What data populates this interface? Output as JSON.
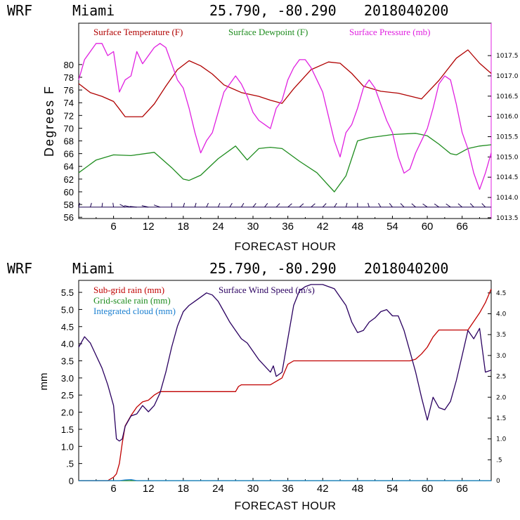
{
  "colors": {
    "temperature": "#b00000",
    "dewpoint": "#1e8c1e",
    "pressure": "#e020e0",
    "wind_barb": "#1a0050",
    "subgrid_rain": "#c00000",
    "gridscale_rain": "#1e8c1e",
    "integrated_cloud": "#1a7fd0",
    "wind_speed": "#2a0060"
  },
  "chart_data": [
    {
      "type": "line",
      "header": {
        "model": "WRF",
        "station": "Miami",
        "coords": "25.790, -80.290",
        "init": "2018040200"
      },
      "title": "WRF Miami 25.790, -80.290 2018040200",
      "xlabel": "FORECAST HOUR",
      "ylabel": "Degrees F",
      "y2label": "",
      "xlim": [
        0,
        71
      ],
      "ylim": [
        55.8,
        86.5
      ],
      "y2lim": [
        1013.48,
        1018.3
      ],
      "xticks": [
        "6",
        "12",
        "18",
        "24",
        "30",
        "36",
        "42",
        "48",
        "54",
        "60",
        "66"
      ],
      "xtick_values": [
        6,
        12,
        18,
        24,
        30,
        36,
        42,
        48,
        54,
        60,
        66
      ],
      "yticks": [
        "56",
        "58",
        "60",
        "62",
        "64",
        "66",
        "68",
        "70",
        "72",
        "74",
        "76",
        "78",
        "80"
      ],
      "ytick_values": [
        56,
        58,
        60,
        62,
        64,
        66,
        68,
        70,
        72,
        74,
        76,
        78,
        80
      ],
      "y2ticks": [
        "1013.5",
        "1014.0",
        "1014.5",
        "1015.0",
        "1015.5",
        "1016.0",
        "1016.5",
        "1017.0",
        "1017.5"
      ],
      "y2tick_values": [
        1013.5,
        1014.0,
        1014.5,
        1015.0,
        1015.5,
        1016.0,
        1016.5,
        1017.0,
        1017.5
      ],
      "legend": [
        "Surface Temperature (F)",
        "Surface Dewpoint (F)",
        "Surface Pressure (mb)"
      ],
      "series": [
        {
          "name": "Surface Temperature (F)",
          "axis": "left",
          "x": [
            0,
            2,
            4,
            6,
            7,
            8,
            11,
            13,
            15,
            17,
            19,
            21,
            23,
            25,
            28,
            31,
            33,
            35,
            37,
            40,
            43,
            45,
            47,
            49,
            52,
            55,
            59,
            62,
            65,
            67,
            69,
            71
          ],
          "values": [
            77.0,
            75.6,
            75.0,
            74.2,
            73.0,
            71.8,
            71.8,
            73.8,
            76.6,
            79.2,
            80.6,
            79.8,
            78.5,
            76.8,
            75.6,
            75.0,
            74.4,
            73.9,
            76.2,
            79.2,
            80.4,
            80.2,
            78.6,
            76.6,
            75.8,
            75.5,
            74.6,
            77.5,
            81.0,
            82.3,
            80.2,
            78.6
          ]
        },
        {
          "name": "Surface Dewpoint (F)",
          "axis": "left",
          "x": [
            0,
            3,
            6,
            9,
            13,
            16,
            18,
            19,
            21,
            24,
            27,
            29,
            31,
            33,
            35,
            38,
            41,
            44,
            46,
            48,
            50,
            54,
            58,
            60,
            62,
            64,
            65,
            67,
            69,
            71
          ],
          "values": [
            63.0,
            65.0,
            65.8,
            65.7,
            66.2,
            63.8,
            62.0,
            61.8,
            62.6,
            65.2,
            67.2,
            65.0,
            66.8,
            67.0,
            66.8,
            64.8,
            63.0,
            60.0,
            62.5,
            68.0,
            68.5,
            69.0,
            69.2,
            68.8,
            67.5,
            66.0,
            65.8,
            66.8,
            67.2,
            67.4
          ]
        },
        {
          "name": "Surface Pressure (mb)",
          "axis": "right",
          "x": [
            0,
            1,
            2,
            3,
            4,
            5,
            6,
            7,
            8,
            9,
            10,
            11,
            12,
            13,
            14,
            15,
            16,
            17,
            18,
            19,
            20,
            21,
            22,
            23,
            24,
            25,
            26,
            27,
            28,
            29,
            30,
            31,
            32,
            33,
            34,
            35,
            36,
            37,
            38,
            39,
            40,
            41,
            42,
            43,
            44,
            45,
            46,
            47,
            48,
            49,
            50,
            51,
            52,
            53,
            54,
            55,
            56,
            57,
            58,
            59,
            60,
            61,
            62,
            63,
            64,
            65,
            66,
            67,
            68,
            69,
            70,
            71
          ],
          "values": [
            1016.9,
            1017.4,
            1017.6,
            1017.8,
            1017.8,
            1017.5,
            1017.6,
            1016.6,
            1016.9,
            1017.0,
            1017.6,
            1017.3,
            1017.5,
            1017.7,
            1017.8,
            1017.7,
            1017.3,
            1016.9,
            1016.7,
            1016.2,
            1015.6,
            1015.1,
            1015.4,
            1015.6,
            1016.1,
            1016.6,
            1016.8,
            1017.0,
            1016.8,
            1016.5,
            1016.1,
            1015.9,
            1015.8,
            1015.7,
            1016.2,
            1016.4,
            1016.9,
            1017.2,
            1017.4,
            1017.4,
            1017.2,
            1016.9,
            1016.6,
            1016.0,
            1015.4,
            1015.0,
            1015.6,
            1015.8,
            1016.2,
            1016.7,
            1016.9,
            1016.7,
            1016.3,
            1015.9,
            1015.6,
            1015.0,
            1014.6,
            1014.7,
            1015.1,
            1015.4,
            1015.7,
            1016.2,
            1016.8,
            1017.0,
            1016.9,
            1016.3,
            1015.6,
            1015.2,
            1014.6,
            1014.2,
            1014.6,
            1015.1
          ]
        }
      ],
      "wind_barbs": {
        "name": "Surface wind barbs",
        "y_level": 57.6,
        "x": [
          0,
          2,
          4,
          6,
          8,
          9,
          10,
          12,
          14,
          16,
          18,
          20,
          22,
          24,
          26,
          28,
          30,
          32,
          34,
          36,
          38,
          40,
          42,
          44,
          46,
          48,
          50,
          52,
          54,
          56,
          58,
          60,
          62,
          64,
          66,
          68,
          70
        ],
        "direction_deg": [
          80,
          80,
          85,
          95,
          140,
          160,
          170,
          160,
          150,
          90,
          80,
          80,
          75,
          75,
          70,
          70,
          65,
          65,
          60,
          55,
          55,
          55,
          60,
          70,
          80,
          90,
          100,
          110,
          115,
          120,
          125,
          130,
          130,
          130,
          125,
          120,
          120
        ]
      }
    },
    {
      "type": "line",
      "header": {
        "model": "WRF",
        "station": "Miami",
        "coords": "25.790, -80.290",
        "init": "2018040200"
      },
      "title": "WRF Miami 25.790, -80.290 2018040200",
      "xlabel": "FORECAST HOUR",
      "ylabel": "mm",
      "xlim": [
        0,
        71
      ],
      "ylim": [
        0,
        5.85
      ],
      "y2lim": [
        0,
        4.8
      ],
      "xticks": [
        "6",
        "12",
        "18",
        "24",
        "30",
        "36",
        "42",
        "48",
        "54",
        "60",
        "66"
      ],
      "xtick_values": [
        6,
        12,
        18,
        24,
        30,
        36,
        42,
        48,
        54,
        60,
        66
      ],
      "yticks": [
        "0",
        ".5",
        "1.0",
        "1.5",
        "2.0",
        "2.5",
        "3.0",
        "3.5",
        "4.0",
        "4.5",
        "5.0",
        "5.5"
      ],
      "ytick_values": [
        0,
        0.5,
        1.0,
        1.5,
        2.0,
        2.5,
        3.0,
        3.5,
        4.0,
        4.5,
        5.0,
        5.5
      ],
      "y2ticks": [
        "0",
        ".5",
        "1.0",
        "1.5",
        "2.0",
        "2.5",
        "3.0",
        "3.5",
        "4.0",
        "4.5"
      ],
      "y2tick_values": [
        0,
        0.5,
        1.0,
        1.5,
        2.0,
        2.5,
        3.0,
        3.5,
        4.0,
        4.5
      ],
      "legend": [
        "Sub-grid rain (mm)",
        "Surface Wind Speed (m/s)",
        "Grid-scale rain (mm)",
        "Integrated cloud (mm)"
      ],
      "series": [
        {
          "name": "Sub-grid rain (mm)",
          "axis": "left",
          "x": [
            0,
            5,
            6,
            6.5,
            7,
            7.5,
            8,
            9,
            10,
            11,
            12,
            13,
            14,
            27,
            27.5,
            28,
            33,
            34,
            35,
            36,
            37,
            57,
            58,
            59,
            60,
            61,
            62,
            65,
            67,
            68,
            69,
            70,
            71
          ],
          "values": [
            0,
            0,
            0.1,
            0.2,
            0.5,
            1.1,
            1.6,
            1.9,
            2.15,
            2.3,
            2.35,
            2.5,
            2.6,
            2.6,
            2.75,
            2.8,
            2.8,
            2.9,
            3.0,
            3.4,
            3.5,
            3.5,
            3.55,
            3.7,
            3.9,
            4.2,
            4.4,
            4.4,
            4.4,
            4.65,
            4.9,
            5.2,
            5.6
          ]
        },
        {
          "name": "Grid-scale rain (mm)",
          "axis": "left",
          "x": [
            0,
            71
          ],
          "values": [
            0,
            0
          ]
        },
        {
          "name": "Integrated cloud (mm)",
          "axis": "left",
          "x": [
            0,
            7,
            8,
            9,
            10,
            71
          ],
          "values": [
            0,
            0,
            0.02,
            0.03,
            0,
            0
          ]
        },
        {
          "name": "Surface Wind Speed (m/s)",
          "axis": "right",
          "x": [
            0,
            1,
            2,
            3,
            4,
            5,
            6,
            6.5,
            7,
            7.5,
            8,
            9,
            10,
            11,
            12,
            13,
            14,
            15,
            16,
            17,
            18,
            19,
            20,
            21,
            22,
            23,
            24,
            25,
            26,
            27,
            28,
            29,
            30,
            31,
            32,
            33,
            33.5,
            34,
            35,
            36,
            37,
            38,
            39,
            40,
            41,
            42,
            43,
            44,
            45,
            46,
            47,
            48,
            49,
            50,
            51,
            52,
            53,
            54,
            55,
            56,
            57,
            58,
            59,
            60,
            61,
            62,
            63,
            64,
            65,
            66,
            67,
            68,
            69,
            70,
            71
          ],
          "values": [
            3.2,
            3.45,
            3.3,
            3.0,
            2.7,
            2.3,
            1.8,
            1.0,
            0.95,
            1.0,
            1.3,
            1.55,
            1.6,
            1.8,
            1.65,
            1.8,
            2.1,
            2.6,
            3.2,
            3.7,
            4.05,
            4.2,
            4.3,
            4.4,
            4.5,
            4.45,
            4.3,
            4.05,
            3.8,
            3.6,
            3.4,
            3.3,
            3.1,
            2.9,
            2.75,
            2.6,
            2.75,
            2.5,
            2.6,
            3.4,
            4.2,
            4.55,
            4.65,
            4.7,
            4.7,
            4.7,
            4.65,
            4.6,
            4.4,
            4.2,
            3.8,
            3.55,
            3.6,
            3.8,
            3.9,
            4.05,
            4.1,
            3.95,
            3.95,
            3.6,
            3.1,
            2.6,
            2.0,
            1.45,
            2.0,
            1.75,
            1.7,
            1.9,
            2.4,
            3.0,
            3.6,
            3.4,
            3.65,
            2.6,
            2.65
          ]
        }
      ]
    }
  ]
}
